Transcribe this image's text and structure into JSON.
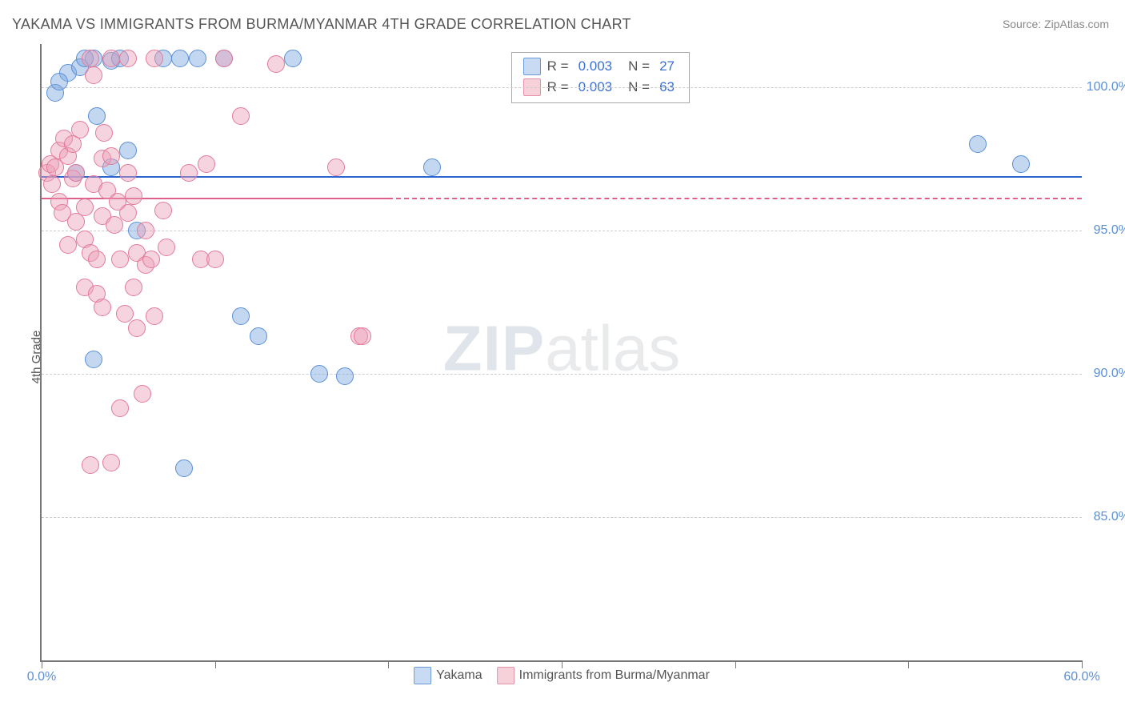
{
  "title": "YAKAMA VS IMMIGRANTS FROM BURMA/MYANMAR 4TH GRADE CORRELATION CHART",
  "source_label": "Source: ZipAtlas.com",
  "watermark": {
    "part1": "ZIP",
    "part2": "atlas"
  },
  "yaxis_title": "4th Grade",
  "chart": {
    "type": "scatter",
    "background_color": "#ffffff",
    "grid_color": "#cccccc",
    "axis_color": "#777777",
    "xlim": [
      0,
      60
    ],
    "ylim": [
      80,
      101.5
    ],
    "xticks": [
      0,
      10,
      20,
      30,
      40,
      50,
      60
    ],
    "xtick_labels_visible": {
      "0": "0.0%",
      "60": "60.0%"
    },
    "yticks": [
      85,
      90,
      95,
      100
    ],
    "ytick_labels": {
      "85": "85.0%",
      "90": "90.0%",
      "95": "95.0%",
      "100": "100.0%"
    },
    "ytick_label_color": "#5b8fd6",
    "xtick_label_color": "#5b8fd6",
    "marker_radius": 10,
    "marker_opacity": 0.55,
    "title_fontsize": 18,
    "label_fontsize": 15
  },
  "legend_top": {
    "rows": [
      {
        "swatch_fill": "#c9dbf2",
        "swatch_border": "#6a9bd8",
        "r_label": "R =",
        "r_value": "0.003",
        "n_label": "N =",
        "n_value": "27"
      },
      {
        "swatch_fill": "#f6d1da",
        "swatch_border": "#e593ab",
        "r_label": "R =",
        "r_value": "0.003",
        "n_label": "N =",
        "n_value": "63"
      }
    ]
  },
  "legend_bottom": {
    "items": [
      {
        "swatch_fill": "#c9dbf2",
        "swatch_border": "#6a9bd8",
        "label": "Yakama"
      },
      {
        "swatch_fill": "#f6d1da",
        "swatch_border": "#e593ab",
        "label": "Immigrants from Burma/Myanmar"
      }
    ]
  },
  "series": [
    {
      "name": "Yakama",
      "color_fill": "rgba(122,167,222,0.45)",
      "color_stroke": "#5b8fd6",
      "trend": {
        "y": 96.9,
        "x0": 0,
        "x1": 60,
        "solid_until": 60,
        "color": "#2b66d0",
        "width": 2
      },
      "points": [
        [
          0.8,
          99.8
        ],
        [
          1.5,
          100.5
        ],
        [
          2.2,
          100.7
        ],
        [
          3.0,
          101.0
        ],
        [
          3.2,
          99.0
        ],
        [
          4.0,
          100.9
        ],
        [
          4.5,
          101.0
        ],
        [
          5.0,
          97.8
        ],
        [
          5.5,
          95.0
        ],
        [
          7.0,
          101.0
        ],
        [
          8.0,
          101.0
        ],
        [
          8.2,
          86.7
        ],
        [
          9.0,
          101.0
        ],
        [
          10.5,
          101.0
        ],
        [
          11.5,
          92.0
        ],
        [
          12.5,
          91.3
        ],
        [
          14.5,
          101.0
        ],
        [
          16.0,
          90.0
        ],
        [
          17.5,
          89.9
        ],
        [
          22.5,
          97.2
        ],
        [
          3.0,
          90.5
        ],
        [
          54.0,
          98.0
        ],
        [
          56.5,
          97.3
        ],
        [
          2.0,
          97.0
        ],
        [
          4.0,
          97.2
        ],
        [
          2.5,
          101.0
        ],
        [
          1.0,
          100.2
        ]
      ]
    },
    {
      "name": "Immigrants from Burma/Myanmar",
      "color_fill": "rgba(236,160,183,0.45)",
      "color_stroke": "#e27a99",
      "trend": {
        "y": 96.15,
        "x0": 0,
        "x1": 60,
        "solid_until": 20,
        "color": "#de5f88",
        "width": 2
      },
      "points": [
        [
          0.3,
          97.0
        ],
        [
          0.5,
          97.3
        ],
        [
          0.6,
          96.6
        ],
        [
          0.8,
          97.2
        ],
        [
          1.0,
          96.0
        ],
        [
          1.0,
          97.8
        ],
        [
          1.2,
          95.6
        ],
        [
          1.3,
          98.2
        ],
        [
          1.5,
          97.6
        ],
        [
          1.5,
          94.5
        ],
        [
          1.8,
          96.8
        ],
        [
          1.8,
          98.0
        ],
        [
          2.0,
          95.3
        ],
        [
          2.0,
          97.0
        ],
        [
          2.2,
          98.5
        ],
        [
          2.5,
          94.7
        ],
        [
          2.5,
          95.8
        ],
        [
          2.5,
          93.0
        ],
        [
          2.8,
          101.0
        ],
        [
          2.8,
          94.2
        ],
        [
          3.0,
          100.4
        ],
        [
          3.0,
          96.6
        ],
        [
          3.2,
          92.8
        ],
        [
          3.2,
          94.0
        ],
        [
          3.5,
          95.5
        ],
        [
          3.5,
          97.5
        ],
        [
          3.5,
          92.3
        ],
        [
          3.8,
          96.4
        ],
        [
          4.0,
          97.6
        ],
        [
          4.0,
          101.0
        ],
        [
          4.2,
          95.2
        ],
        [
          4.5,
          88.8
        ],
        [
          4.5,
          94.0
        ],
        [
          4.8,
          92.1
        ],
        [
          5.0,
          97.0
        ],
        [
          5.0,
          95.6
        ],
        [
          5.3,
          96.2
        ],
        [
          5.3,
          93.0
        ],
        [
          5.5,
          94.2
        ],
        [
          5.5,
          91.6
        ],
        [
          5.8,
          89.3
        ],
        [
          6.0,
          93.8
        ],
        [
          6.0,
          95.0
        ],
        [
          6.3,
          94.0
        ],
        [
          6.5,
          101.0
        ],
        [
          6.5,
          92.0
        ],
        [
          7.0,
          95.7
        ],
        [
          7.2,
          94.4
        ],
        [
          8.5,
          97.0
        ],
        [
          9.2,
          94.0
        ],
        [
          9.5,
          97.3
        ],
        [
          10.0,
          94.0
        ],
        [
          10.5,
          101.0
        ],
        [
          11.5,
          99.0
        ],
        [
          13.5,
          100.8
        ],
        [
          2.8,
          86.8
        ],
        [
          4.0,
          86.9
        ],
        [
          17.0,
          97.2
        ],
        [
          18.3,
          91.3
        ],
        [
          18.5,
          91.3
        ],
        [
          3.6,
          98.4
        ],
        [
          4.4,
          96.0
        ],
        [
          5.0,
          101.0
        ]
      ]
    }
  ]
}
